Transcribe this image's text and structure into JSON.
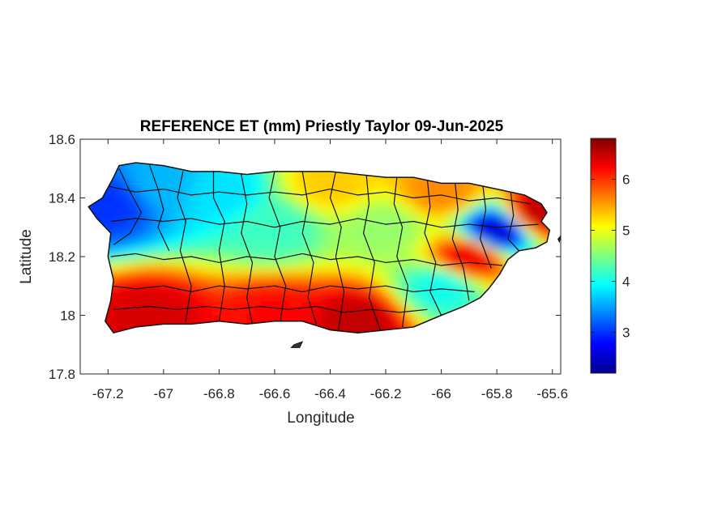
{
  "figure": {
    "title": "REFERENCE ET (mm) Priestly Taylor 09-Jun-2025"
  },
  "chart_data": {
    "type": "heatmap",
    "title": "REFERENCE ET (mm) Priestly Taylor 09-Jun-2025",
    "xlabel": "Longitude",
    "ylabel": "Latitude",
    "xlim": [
      -67.3,
      -65.57
    ],
    "ylim": [
      17.8,
      18.6
    ],
    "xticks": [
      -67.2,
      -67,
      -66.8,
      -66.6,
      -66.4,
      -66.2,
      -66,
      -65.8,
      -65.6
    ],
    "xtick_labels": [
      "-67.2",
      "-67",
      "-66.8",
      "-66.6",
      "-66.4",
      "-66.2",
      "-66",
      "-65.8",
      "-65.6"
    ],
    "yticks": [
      17.8,
      18,
      18.2,
      18.4,
      18.6
    ],
    "ytick_labels": [
      "17.8",
      "18",
      "18.2",
      "18.4",
      "18.6"
    ],
    "colormap": "jet",
    "colorbar": {
      "range": [
        2.2,
        6.8
      ],
      "ticks": [
        3,
        4,
        5,
        6
      ],
      "tick_labels": [
        "3",
        "4",
        "5",
        "6"
      ],
      "placement": "right"
    },
    "region": "Puerto Rico (municipality boundaries overlaid)",
    "approx_values": [
      {
        "lon": -67.2,
        "lat": 18.38,
        "value": 3.0
      },
      {
        "lon": -67.0,
        "lat": 18.45,
        "value": 3.6
      },
      {
        "lon": -66.8,
        "lat": 18.42,
        "value": 3.8
      },
      {
        "lon": -66.6,
        "lat": 18.3,
        "value": 4.2
      },
      {
        "lon": -66.4,
        "lat": 18.45,
        "value": 5.3
      },
      {
        "lon": -66.2,
        "lat": 18.3,
        "value": 4.6
      },
      {
        "lon": -66.0,
        "lat": 18.42,
        "value": 5.6
      },
      {
        "lon": -65.8,
        "lat": 18.29,
        "value": 2.6
      },
      {
        "lon": -65.65,
        "lat": 18.35,
        "value": 6.5
      },
      {
        "lon": -67.05,
        "lat": 18.0,
        "value": 6.4
      },
      {
        "lon": -66.6,
        "lat": 18.0,
        "value": 6.2
      },
      {
        "lon": -66.3,
        "lat": 17.98,
        "value": 6.5
      },
      {
        "lon": -66.0,
        "lat": 18.1,
        "value": 4.0
      },
      {
        "lon": -65.9,
        "lat": 18.2,
        "value": 6.3
      }
    ]
  }
}
